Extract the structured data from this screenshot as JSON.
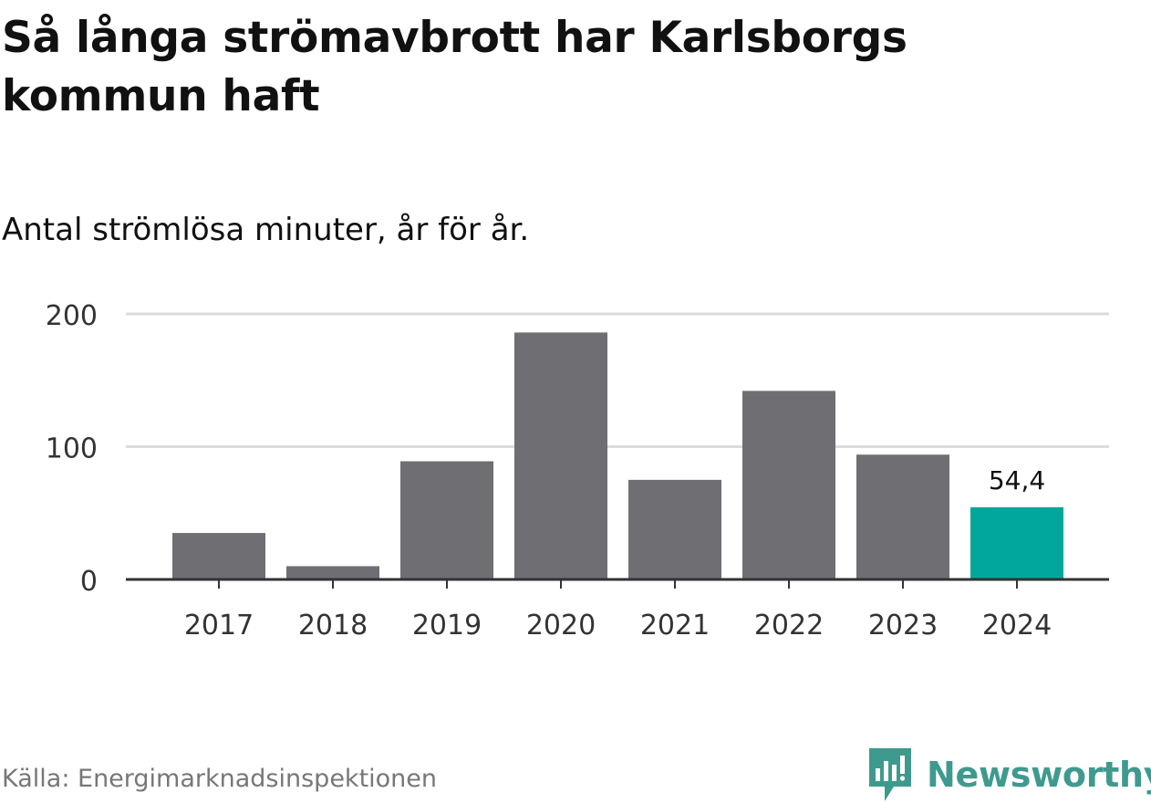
{
  "header": {
    "title": "Så långa strömavbrott har Karlsborgs kommun haft",
    "subtitle": "Antal strömlösa minuter, år för år."
  },
  "footer": {
    "source": "Källa: Energimarknadsinspektionen",
    "brand": "Newsworthy"
  },
  "colors": {
    "bar": "#6f6e73",
    "highlight": "#00a79a",
    "grid": "#dcdcdc",
    "axis": "#333333",
    "brand": "#3e9a8f"
  },
  "chart_data": {
    "type": "bar",
    "categories": [
      "2017",
      "2018",
      "2019",
      "2020",
      "2021",
      "2022",
      "2023",
      "2024"
    ],
    "values": [
      35,
      10,
      89,
      186,
      75,
      142,
      94,
      54.4
    ],
    "highlight_index": 7,
    "data_labels": [
      {
        "index": 7,
        "text": "54,4"
      }
    ],
    "ylim": [
      0,
      200
    ],
    "yticks": [
      0,
      100,
      200
    ],
    "grid": true,
    "xlabel": "",
    "ylabel": ""
  }
}
